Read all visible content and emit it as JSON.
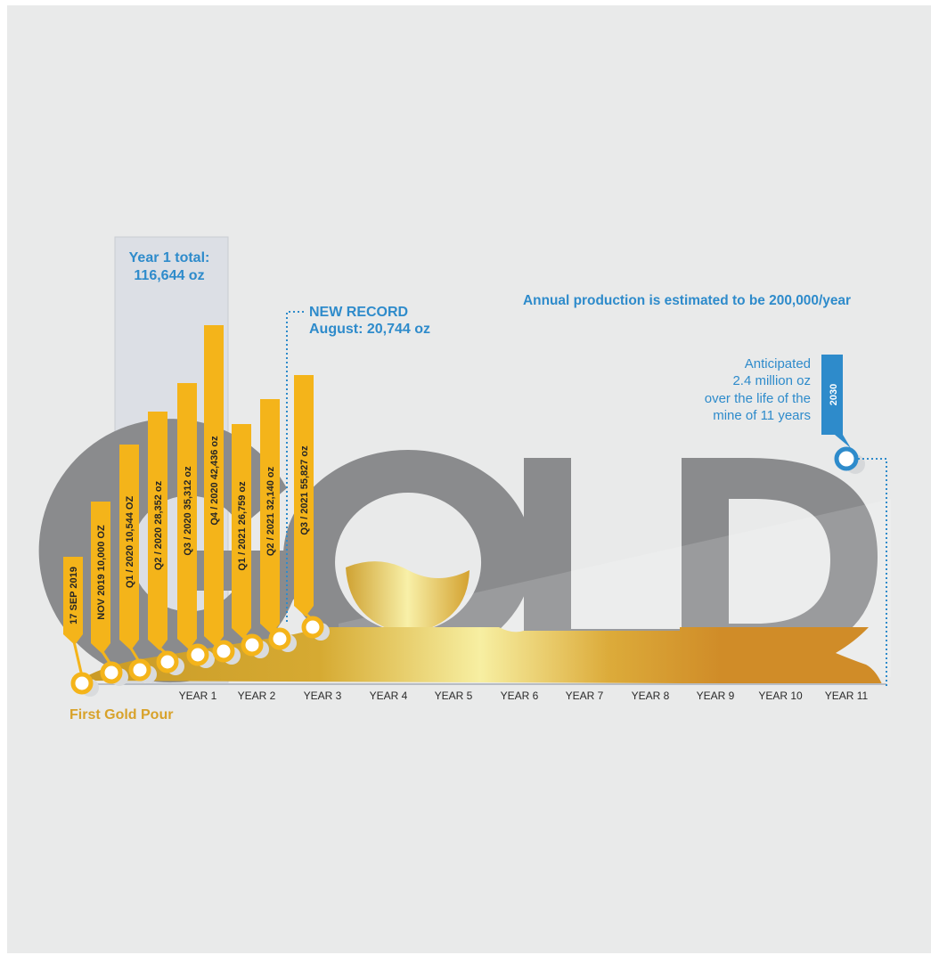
{
  "texts": {
    "year1_total_line1": "Year 1 total:",
    "year1_total_line2": "116,644 oz",
    "new_record_line1": "NEW RECORD",
    "new_record_line2": "August: 20,744 oz",
    "annual_production": "Annual production is estimated to be 200,000/year",
    "anticipated_lines": [
      "Anticipated",
      "2.4 million oz",
      "over the life of the",
      "mine of 11 years"
    ],
    "first_gold_pour": "First Gold Pour",
    "word": "GOLD",
    "year_2030": "2030"
  },
  "colors": {
    "gold": "#f4b41a",
    "gold_dark": "#d08c28",
    "blue": "#2e8bcb",
    "grey_letter": "#8a8b8d",
    "label_text": "#262626"
  },
  "chart_data": {
    "type": "timeline",
    "milestones": [
      {
        "label": "17 SEP 2019"
      },
      {
        "label": "NOV 2019 10,000 OZ",
        "value": 10000
      },
      {
        "label": "Q1 / 2020 10,544 OZ",
        "value": 10544
      },
      {
        "label": "Q2 / 2020 28,352 oz",
        "value": 28352
      },
      {
        "label": "Q3 / 2020 35,312 oz",
        "value": 35312
      },
      {
        "label": "Q4 / 2020 42,436 oz",
        "value": 42436
      },
      {
        "label": "Q1 / 2021 26,759 oz",
        "value": 26759
      },
      {
        "label": "Q2 / 2021 32,140 oz",
        "value": 32140
      },
      {
        "label": "Q3 / 2021 55,827 oz",
        "value": 55827
      }
    ],
    "x_ticks": [
      "YEAR 1",
      "YEAR 2",
      "YEAR 3",
      "YEAR 4",
      "YEAR 5",
      "YEAR 6",
      "YEAR 7",
      "YEAR 8",
      "YEAR 9",
      "YEAR 10",
      "YEAR 11"
    ]
  }
}
